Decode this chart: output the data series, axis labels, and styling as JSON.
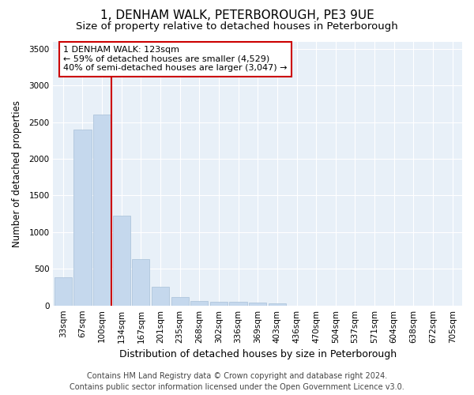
{
  "title": "1, DENHAM WALK, PETERBOROUGH, PE3 9UE",
  "subtitle": "Size of property relative to detached houses in Peterborough",
  "xlabel": "Distribution of detached houses by size in Peterborough",
  "ylabel": "Number of detached properties",
  "categories": [
    "33sqm",
    "67sqm",
    "100sqm",
    "134sqm",
    "167sqm",
    "201sqm",
    "235sqm",
    "268sqm",
    "302sqm",
    "336sqm",
    "369sqm",
    "403sqm",
    "436sqm",
    "470sqm",
    "504sqm",
    "537sqm",
    "571sqm",
    "604sqm",
    "638sqm",
    "672sqm",
    "705sqm"
  ],
  "values": [
    380,
    2400,
    2600,
    1230,
    630,
    250,
    110,
    60,
    50,
    50,
    45,
    30,
    0,
    0,
    0,
    0,
    0,
    0,
    0,
    0,
    0
  ],
  "bar_color": "#c5d8ed",
  "bar_edge_color": "#a8c0d8",
  "vline_color": "#cc0000",
  "annotation_text": "1 DENHAM WALK: 123sqm\n← 59% of detached houses are smaller (4,529)\n40% of semi-detached houses are larger (3,047) →",
  "annotation_box_facecolor": "#ffffff",
  "annotation_box_edgecolor": "#cc0000",
  "ylim": [
    0,
    3600
  ],
  "yticks": [
    0,
    500,
    1000,
    1500,
    2000,
    2500,
    3000,
    3500
  ],
  "bg_color": "#ffffff",
  "plot_bg_color": "#e8f0f8",
  "grid_color": "#ffffff",
  "title_fontsize": 11,
  "subtitle_fontsize": 9.5,
  "xlabel_fontsize": 9,
  "ylabel_fontsize": 8.5,
  "tick_fontsize": 7.5,
  "annotation_fontsize": 8,
  "footer_fontsize": 7,
  "footer": "Contains HM Land Registry data © Crown copyright and database right 2024.\nContains public sector information licensed under the Open Government Licence v3.0."
}
